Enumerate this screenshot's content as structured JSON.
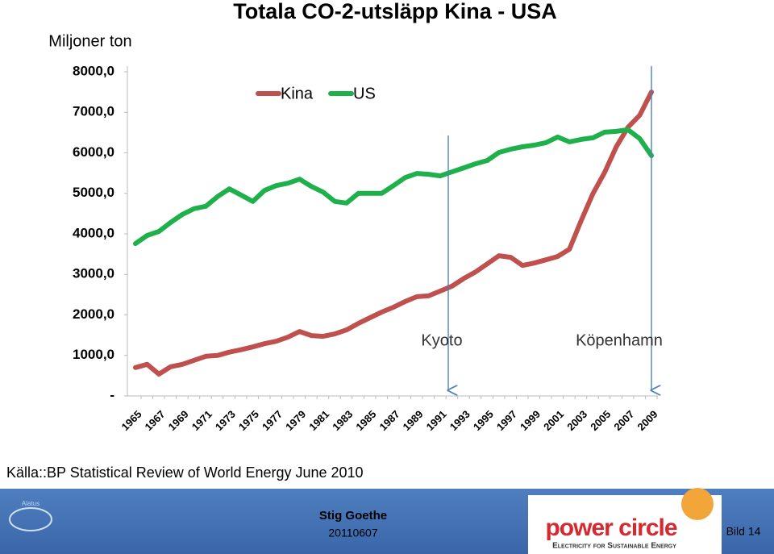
{
  "chart_data": {
    "type": "line",
    "title": "Totala CO-2-utsläpp Kina - USA",
    "y_label": "Miljoner ton",
    "categories": [
      "1965",
      null,
      "1967",
      null,
      "1969",
      null,
      "1971",
      null,
      "1973",
      null,
      "1975",
      null,
      "1977",
      null,
      "1979",
      null,
      "1981",
      null,
      "1983",
      null,
      "1985",
      null,
      "1987",
      null,
      "1989",
      null,
      "1991",
      null,
      "1993",
      null,
      "1995",
      null,
      "1997",
      null,
      "1999",
      null,
      "2001",
      null,
      "2003",
      null,
      "2005",
      null,
      "2007",
      null,
      "2009"
    ],
    "series": [
      {
        "name": "Kina",
        "color": "#c0504d",
        "values": [
          700,
          780,
          540,
          720,
          780,
          880,
          980,
          1000,
          1080,
          1140,
          1210,
          1290,
          1350,
          1450,
          1590,
          1490,
          1470,
          1530,
          1630,
          1790,
          1930,
          2070,
          2190,
          2330,
          2450,
          2470,
          2590,
          2710,
          2900,
          3060,
          3260,
          3460,
          3420,
          3220,
          3280,
          3360,
          3440,
          3620,
          4320,
          4990,
          5510,
          6150,
          6630,
          6930,
          7500
        ]
      },
      {
        "name": "US",
        "color": "#1eb04b",
        "values": [
          3760,
          3960,
          4060,
          4280,
          4480,
          4620,
          4680,
          4920,
          5110,
          4960,
          4800,
          5070,
          5190,
          5250,
          5350,
          5170,
          5030,
          4800,
          4760,
          5000,
          5000,
          5000,
          5190,
          5390,
          5490,
          5470,
          5430,
          5530,
          5630,
          5730,
          5810,
          6010,
          6090,
          6150,
          6190,
          6250,
          6390,
          6270,
          6330,
          6370,
          6510,
          6530,
          6570,
          6350,
          5930
        ]
      }
    ],
    "ylim": [
      0,
      8000
    ],
    "yticks": [
      {
        "value": 0,
        "label": "-"
      },
      {
        "value": 1000,
        "label": "1000,0"
      },
      {
        "value": 2000,
        "label": "2000,0"
      },
      {
        "value": 3000,
        "label": "3000,0"
      },
      {
        "value": 4000,
        "label": "4000,0"
      },
      {
        "value": 5000,
        "label": "5000,0"
      },
      {
        "value": 6000,
        "label": "6000,0"
      },
      {
        "value": 7000,
        "label": "7000,0"
      },
      {
        "value": 8000,
        "label": "8000,0"
      }
    ],
    "legend": "top",
    "annotations": [
      "Kyoto",
      "Köpenhamn"
    ]
  },
  "footer": {
    "source": "Källa::BP Statistical Review of World Energy June 2010",
    "author": "Stig Goethe",
    "date": "20110607",
    "brand": "power circle",
    "tagline": "Electricity for Sustainable Energy",
    "logo": "Alatus",
    "slide": "Bild 14"
  }
}
